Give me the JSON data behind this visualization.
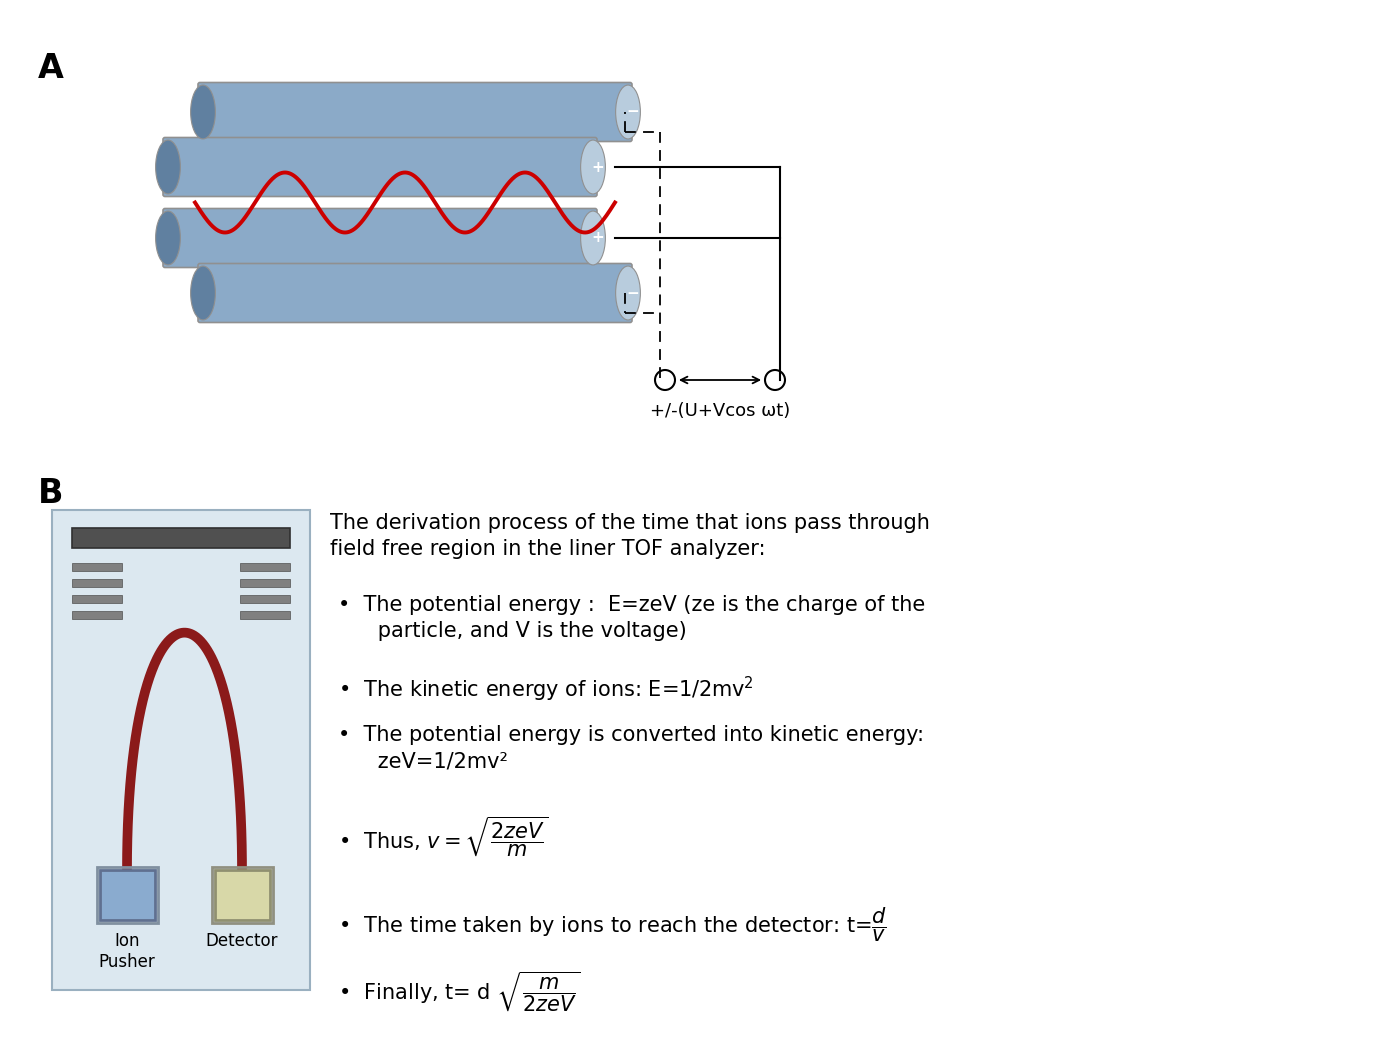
{
  "bg_color": "#ffffff",
  "label_A": "A",
  "label_B": "B",
  "rod_color": "#8baac8",
  "rod_color_dark": "#6080a0",
  "rod_right_ellipse": "#b8ccdd",
  "wave_color": "#cc0000",
  "tof_bg": "#dce8f0",
  "tof_border": "#aabbc8",
  "plate_color": "#505050",
  "grid_color": "#808080",
  "ion_pusher_color": "#8aabcf",
  "ion_pusher_border": "#607090",
  "detector_color": "#d8d8a8",
  "detector_border": "#909070",
  "beam_color": "#8b1a1a",
  "label_fontsize": 24,
  "text_fontsize": 15,
  "voltage_label": "+/-(U+Vcos ωt)",
  "header_text": "The derivation process of the time that ions pass through\nfield free region in the liner TOF analyzer:"
}
